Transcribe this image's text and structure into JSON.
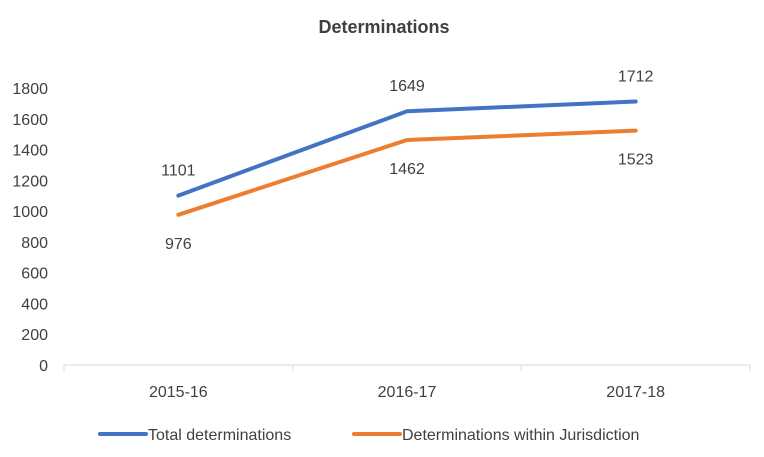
{
  "chart_data": {
    "type": "line",
    "title": "Determinations",
    "xlabel": "",
    "ylabel": "",
    "categories": [
      "2015-16",
      "2016-17",
      "2017-18"
    ],
    "ylim": [
      0,
      1800
    ],
    "yticks": [
      0,
      200,
      400,
      600,
      800,
      1000,
      1200,
      1400,
      1600,
      1800
    ],
    "grid": false,
    "legend_position": "bottom",
    "series": [
      {
        "name": "Total determinations",
        "color": "#4472C4",
        "values": [
          1101,
          1649,
          1712
        ],
        "label_side": "above"
      },
      {
        "name": "Determinations within Jurisdiction",
        "color": "#ED7D31",
        "values": [
          976,
          1462,
          1523
        ],
        "label_side": "below"
      }
    ]
  }
}
